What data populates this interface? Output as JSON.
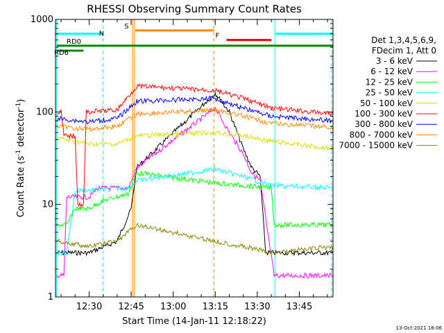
{
  "chart_data": {
    "type": "line",
    "title": "RHESSI Observing Summary Count Rates",
    "xlabel": "Start Time (14-Jan-11 12:18:22)",
    "ylabel_main": "Count Rate (s",
    "ylabel_sup1": "-1",
    "ylabel_mid": " detector",
    "ylabel_sup2": "-1",
    "ylabel_end": ")",
    "yscale": "log",
    "ylim": [
      1,
      1000
    ],
    "xlim_minutes": [
      18,
      117
    ],
    "x_ticks": [
      {
        "label": "12:30",
        "min": 30
      },
      {
        "label": "12:45",
        "min": 45
      },
      {
        "label": "13:00",
        "min": 60
      },
      {
        "label": "13:15",
        "min": 75
      },
      {
        "label": "13:30",
        "min": 90
      },
      {
        "label": "13:45",
        "min": 105
      }
    ],
    "y_ticks": [
      {
        "label": "1",
        "value": 1
      },
      {
        "label": "10",
        "value": 10
      },
      {
        "label": "100",
        "value": 100
      },
      {
        "label": "1000",
        "value": 1000
      }
    ],
    "legend_header": [
      "Det 1,3,4,5,6,9,",
      "FDecim 1, Att 0"
    ],
    "legend_placement": "right",
    "series": [
      {
        "name": "3 - 6 keV",
        "color": "#000000",
        "points": [
          [
            18.5,
            3
          ],
          [
            30,
            3
          ],
          [
            40,
            4
          ],
          [
            45,
            9
          ],
          [
            47,
            25
          ],
          [
            75,
            160
          ],
          [
            80,
            100
          ],
          [
            85,
            40
          ],
          [
            88,
            25
          ],
          [
            91,
            20
          ],
          [
            93,
            3
          ],
          [
            96,
            3
          ],
          [
            117,
            3
          ]
        ]
      },
      {
        "name": "6 - 12 keV",
        "color": "#ff00ff",
        "points": [
          [
            18.5,
            1.7
          ],
          [
            21,
            1.7
          ],
          [
            22,
            12
          ],
          [
            30,
            12
          ],
          [
            33,
            15
          ],
          [
            44,
            15
          ],
          [
            47,
            25
          ],
          [
            75,
            110
          ],
          [
            80,
            60
          ],
          [
            85,
            35
          ],
          [
            88,
            22
          ],
          [
            91,
            18
          ],
          [
            96,
            1.7
          ],
          [
            117,
            1.7
          ]
        ]
      },
      {
        "name": "12 - 25 keV",
        "color": "#00ff00",
        "points": [
          [
            18.5,
            6
          ],
          [
            22,
            6
          ],
          [
            25,
            9
          ],
          [
            30,
            9
          ],
          [
            35,
            11
          ],
          [
            44,
            13
          ],
          [
            47,
            22
          ],
          [
            75,
            17
          ],
          [
            85,
            16
          ],
          [
            95,
            15
          ],
          [
            96,
            6
          ],
          [
            117,
            6
          ]
        ]
      },
      {
        "name": "25 - 50 keV",
        "color": "#00ffff",
        "points": [
          [
            18.5,
            3
          ],
          [
            22,
            3
          ],
          [
            25,
            14
          ],
          [
            44,
            15
          ],
          [
            47,
            18
          ],
          [
            75,
            24
          ],
          [
            85,
            20
          ],
          [
            95,
            16
          ],
          [
            117,
            15
          ]
        ]
      },
      {
        "name": "50 - 100 keV",
        "color": "#dddd00",
        "points": [
          [
            18.5,
            52
          ],
          [
            30,
            45
          ],
          [
            40,
            45
          ],
          [
            47,
            55
          ],
          [
            75,
            60
          ],
          [
            85,
            55
          ],
          [
            95,
            48
          ],
          [
            117,
            40
          ]
        ]
      },
      {
        "name": "100 - 300 keV",
        "color": "#ff0000",
        "points": [
          [
            18.5,
            100
          ],
          [
            20,
            100
          ],
          [
            21,
            55
          ],
          [
            25,
            55
          ],
          [
            26,
            10
          ],
          [
            28,
            10
          ],
          [
            29,
            100
          ],
          [
            40,
            105
          ],
          [
            47,
            190
          ],
          [
            75,
            170
          ],
          [
            85,
            140
          ],
          [
            95,
            110
          ],
          [
            117,
            95
          ]
        ]
      },
      {
        "name": "300 - 800 keV",
        "color": "#0000ff",
        "points": [
          [
            18.5,
            85
          ],
          [
            30,
            78
          ],
          [
            40,
            85
          ],
          [
            47,
            130
          ],
          [
            75,
            140
          ],
          [
            85,
            110
          ],
          [
            95,
            90
          ],
          [
            117,
            80
          ]
        ]
      },
      {
        "name": "800 - 7000 keV",
        "color": "#ff8800",
        "points": [
          [
            18.5,
            70
          ],
          [
            30,
            65
          ],
          [
            40,
            70
          ],
          [
            47,
            95
          ],
          [
            75,
            105
          ],
          [
            85,
            90
          ],
          [
            95,
            75
          ],
          [
            117,
            68
          ]
        ]
      },
      {
        "name": "7000 - 15000 keV",
        "color": "#888800",
        "points": [
          [
            18.5,
            4
          ],
          [
            30,
            3.5
          ],
          [
            40,
            4
          ],
          [
            47,
            6
          ],
          [
            75,
            4
          ],
          [
            85,
            3.5
          ],
          [
            95,
            3
          ],
          [
            117,
            3.5
          ]
        ]
      }
    ],
    "state_bars": [
      {
        "label": "N",
        "color": "#00ffff",
        "segments": [
          [
            18,
            35
          ],
          [
            96.5,
            117
          ]
        ],
        "value": 700
      },
      {
        "label": "S",
        "color": "#ff8800",
        "segments": [
          [
            46.5,
            74.5
          ]
        ],
        "value": 760
      },
      {
        "label": "F",
        "color": "#ff0000",
        "segments": [
          [
            79,
            95
          ]
        ],
        "value": 600
      },
      {
        "label": "RD0",
        "color": "#008800",
        "segments": [
          [
            18.5,
            117
          ]
        ],
        "value": 520
      },
      {
        "label": "RD6",
        "color": "#008800",
        "segments": [
          [
            18.5,
            28
          ]
        ],
        "value": 460
      }
    ],
    "vlines": [
      {
        "min": 35,
        "color": "#00ffff",
        "dash": true
      },
      {
        "min": 45.6,
        "color": "#ff8800",
        "dash": false
      },
      {
        "min": 46.2,
        "color": "#ff8800",
        "dash": false
      },
      {
        "min": 74.5,
        "color": "#ff8800",
        "dash": true
      },
      {
        "min": 96.3,
        "color": "#00ffff",
        "dash": false
      },
      {
        "min": 116.5,
        "color": "#00ffff",
        "dash": true
      },
      {
        "min": 18.4,
        "color": "#00ffff",
        "dash": false
      }
    ],
    "footer_date": "13-Oct-2021 18:06"
  }
}
